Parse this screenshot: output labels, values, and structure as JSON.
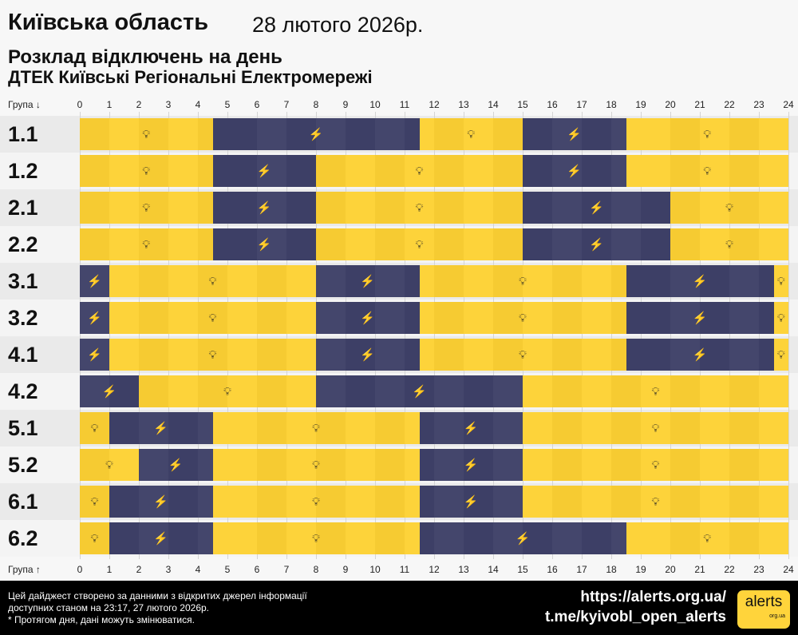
{
  "header": {
    "region": "Київська область",
    "date": "28 лютого 2026р.",
    "subtitle": "Розклад відключень на день",
    "company": "ДТЕК Київські Регіональні Електромережі"
  },
  "axis": {
    "top_label": "Група ↓",
    "bottom_label": "Група ↑",
    "hours": [
      "0",
      "1",
      "2",
      "3",
      "4",
      "5",
      "6",
      "7",
      "8",
      "9",
      "10",
      "11",
      "12",
      "13",
      "14",
      "15",
      "16",
      "17",
      "18",
      "19",
      "20",
      "21",
      "22",
      "23",
      "24"
    ]
  },
  "colors": {
    "power_on": "#fdd33a",
    "power_off": "#3d3f66"
  },
  "legend_icons": {
    "power_on": "lightbulb-icon",
    "power_off": "power-off-icon"
  },
  "groups": [
    {
      "name": "1.1",
      "off": [
        [
          4.5,
          11.5
        ],
        [
          15,
          18.5
        ]
      ]
    },
    {
      "name": "1.2",
      "off": [
        [
          4.5,
          8
        ],
        [
          15,
          18.5
        ]
      ]
    },
    {
      "name": "2.1",
      "off": [
        [
          4.5,
          8
        ],
        [
          15,
          20
        ]
      ]
    },
    {
      "name": "2.2",
      "off": [
        [
          4.5,
          8
        ],
        [
          15,
          20
        ]
      ]
    },
    {
      "name": "3.1",
      "off": [
        [
          0,
          1
        ],
        [
          8,
          11.5
        ],
        [
          18.5,
          23.5
        ]
      ]
    },
    {
      "name": "3.2",
      "off": [
        [
          0,
          1
        ],
        [
          8,
          11.5
        ],
        [
          18.5,
          23.5
        ]
      ]
    },
    {
      "name": "4.1",
      "off": [
        [
          0,
          1
        ],
        [
          8,
          11.5
        ],
        [
          18.5,
          23.5
        ]
      ]
    },
    {
      "name": "4.2",
      "off": [
        [
          0,
          2
        ],
        [
          8,
          15
        ]
      ]
    },
    {
      "name": "5.1",
      "off": [
        [
          1,
          4.5
        ],
        [
          11.5,
          15
        ]
      ]
    },
    {
      "name": "5.2",
      "off": [
        [
          2,
          4.5
        ],
        [
          11.5,
          15
        ]
      ]
    },
    {
      "name": "6.1",
      "off": [
        [
          1,
          4.5
        ],
        [
          11.5,
          15
        ]
      ]
    },
    {
      "name": "6.2",
      "off": [
        [
          1,
          4.5
        ],
        [
          11.5,
          18.5
        ]
      ]
    }
  ],
  "footer": {
    "line1": "Цей дайджест створено за данними з відкритих джерел інформації",
    "line2": "доступних станом на 23:17, 27 лютого 2026р.",
    "line3": "* Протягом дня, дані можуть змінюватися.",
    "site": "https://alerts.org.ua/",
    "telegram": "t.me/kyivobl_open_alerts",
    "logo": "alerts",
    "logo_sub": "org.ua"
  }
}
